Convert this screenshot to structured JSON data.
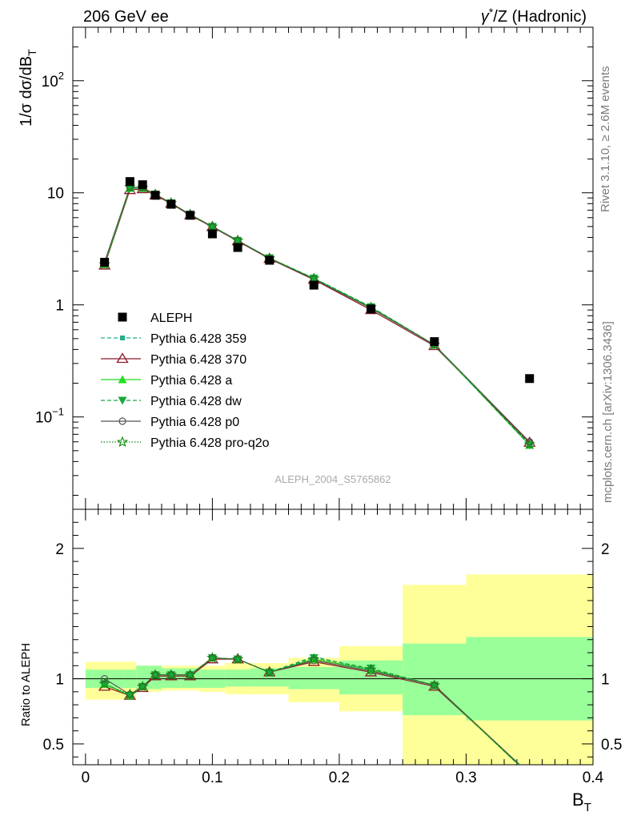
{
  "header": {
    "left": "206 GeV ee",
    "right_gamma": "γ",
    "right_star": "*",
    "right_rest": "/Z (Hadronic)"
  },
  "side": {
    "rivet": "Rivet 3.1.10, ≥ 2.6M events",
    "mcplots": "mcplots.cern.ch [arXiv:1306.3436]"
  },
  "analysis_id": "ALEPH_2004_S5765862",
  "colors": {
    "data": "#000000",
    "p359": "#1fb08a",
    "p370": "#8b1a2a",
    "a": "#22dd22",
    "dw": "#19a83c",
    "p0": "#555555",
    "pro": "#118811",
    "band_inner": "#99ff99",
    "band_outer": "#ffff99"
  },
  "chart_data": [
    {
      "type": "scatter",
      "panel": "main",
      "ylabel_main": "1/σ  dσ/dB",
      "ylabel_sub": "T",
      "yscale": "log",
      "xlim": [
        -0.01,
        0.4
      ],
      "ylim": [
        0.015,
        300
      ],
      "y_ticks": [
        {
          "v": 0.1,
          "base": "10",
          "exp": "−1"
        },
        {
          "v": 1,
          "base": "1",
          "exp": ""
        },
        {
          "v": 10,
          "base": "10",
          "exp": ""
        },
        {
          "v": 100,
          "base": "10",
          "exp": "2"
        }
      ],
      "x": [
        0.015,
        0.035,
        0.045,
        0.055,
        0.0675,
        0.0825,
        0.1,
        0.12,
        0.145,
        0.18,
        0.225,
        0.275,
        0.35
      ],
      "data": {
        "name": "ALEPH",
        "values": [
          2.4,
          12.6,
          11.8,
          9.5,
          7.9,
          6.3,
          4.3,
          3.25,
          2.5,
          1.5,
          0.92,
          0.47,
          0.22
        ]
      },
      "series": [
        {
          "name": "Pythia 6.428 359",
          "key": "p359",
          "marker": "smallsquare",
          "dash": "5,3",
          "values": [
            2.3,
            11.0,
            11.0,
            9.6,
            8.1,
            6.4,
            5.0,
            3.75,
            2.6,
            1.73,
            0.96,
            0.44,
            0.057
          ]
        },
        {
          "name": "Pythia 6.428 370",
          "key": "p370",
          "marker": "triangle_open",
          "dash": "",
          "values": [
            2.25,
            10.6,
            10.8,
            9.5,
            8.0,
            6.3,
            4.95,
            3.7,
            2.58,
            1.68,
            0.9,
            0.43,
            0.059
          ]
        },
        {
          "name": "Pythia 6.428 a",
          "key": "a",
          "marker": "triangle_filled",
          "dash": "",
          "values": [
            2.3,
            11.0,
            11.0,
            9.7,
            8.1,
            6.4,
            5.0,
            3.75,
            2.62,
            1.72,
            0.95,
            0.44,
            0.056
          ]
        },
        {
          "name": "Pythia 6.428 dw",
          "key": "dw",
          "marker": "triangle_down",
          "dash": "5,3",
          "values": [
            2.3,
            11.0,
            11.0,
            9.7,
            8.1,
            6.4,
            5.0,
            3.75,
            2.62,
            1.73,
            0.96,
            0.44,
            0.056
          ]
        },
        {
          "name": "Pythia 6.428 p0",
          "key": "p0",
          "marker": "circle_open",
          "dash": "",
          "values": [
            2.4,
            11.2,
            11.1,
            9.7,
            8.1,
            6.4,
            5.0,
            3.75,
            2.6,
            1.7,
            0.93,
            0.44,
            0.06
          ]
        },
        {
          "name": "Pythia 6.428 pro-q2o",
          "key": "pro",
          "marker": "star_open",
          "dash": "1.5,2",
          "values": [
            2.3,
            11.2,
            11.1,
            9.7,
            8.1,
            6.4,
            5.0,
            3.75,
            2.6,
            1.72,
            0.95,
            0.44,
            0.057
          ]
        }
      ]
    },
    {
      "type": "line",
      "panel": "ratio",
      "ylabel": "Ratio to ALEPH",
      "xlabel_main": "B",
      "xlabel_sub": "T",
      "xlim": [
        -0.01,
        0.4
      ],
      "ylim": [
        0.34,
        2.3
      ],
      "x_ticks": [
        0,
        0.1,
        0.2,
        0.3,
        0.4
      ],
      "x_tick_labels": [
        "0",
        "0.1",
        "0.2",
        "0.3",
        "0.4"
      ],
      "y_ticks": [
        0.5,
        1,
        2
      ],
      "y_tick_labels": [
        "0.5",
        "1",
        "2"
      ],
      "bins": [
        {
          "lo": 0.0,
          "hi": 0.03,
          "inner": [
            0.93,
            1.07
          ],
          "outer": [
            0.84,
            1.13
          ]
        },
        {
          "lo": 0.03,
          "hi": 0.04,
          "inner": [
            0.93,
            1.07
          ],
          "outer": [
            0.84,
            1.13
          ]
        },
        {
          "lo": 0.04,
          "hi": 0.05,
          "inner": [
            0.92,
            1.1
          ],
          "outer": [
            0.9,
            1.1
          ]
        },
        {
          "lo": 0.05,
          "hi": 0.06,
          "inner": [
            0.92,
            1.1
          ],
          "outer": [
            0.9,
            1.1
          ]
        },
        {
          "lo": 0.06,
          "hi": 0.075,
          "inner": [
            0.93,
            1.08
          ],
          "outer": [
            0.91,
            1.1
          ]
        },
        {
          "lo": 0.075,
          "hi": 0.09,
          "inner": [
            0.93,
            1.08
          ],
          "outer": [
            0.91,
            1.1
          ]
        },
        {
          "lo": 0.09,
          "hi": 0.11,
          "inner": [
            0.93,
            1.07
          ],
          "outer": [
            0.9,
            1.1
          ]
        },
        {
          "lo": 0.11,
          "hi": 0.13,
          "inner": [
            0.94,
            1.07
          ],
          "outer": [
            0.88,
            1.12
          ]
        },
        {
          "lo": 0.13,
          "hi": 0.16,
          "inner": [
            0.94,
            1.08
          ],
          "outer": [
            0.88,
            1.12
          ]
        },
        {
          "lo": 0.16,
          "hi": 0.2,
          "inner": [
            0.92,
            1.09
          ],
          "outer": [
            0.82,
            1.16
          ]
        },
        {
          "lo": 0.2,
          "hi": 0.25,
          "inner": [
            0.88,
            1.14
          ],
          "outer": [
            0.75,
            1.25
          ]
        },
        {
          "lo": 0.25,
          "hi": 0.3,
          "inner": [
            0.72,
            1.27
          ],
          "outer": [
            0.3,
            1.72
          ]
        },
        {
          "lo": 0.3,
          "hi": 0.4,
          "inner": [
            0.68,
            1.32
          ],
          "outer": [
            0.3,
            1.8
          ]
        }
      ],
      "x": [
        0.015,
        0.035,
        0.045,
        0.055,
        0.0675,
        0.0825,
        0.1,
        0.12,
        0.145,
        0.18,
        0.225,
        0.275,
        0.35
      ],
      "series": [
        {
          "key": "p359",
          "values": [
            0.96,
            0.87,
            0.93,
            1.03,
            1.03,
            1.03,
            1.16,
            1.15,
            1.05,
            1.17,
            1.07,
            0.95,
            0.26
          ]
        },
        {
          "key": "p370",
          "values": [
            0.94,
            0.87,
            0.93,
            1.02,
            1.02,
            1.02,
            1.15,
            1.15,
            1.05,
            1.13,
            1.05,
            0.94,
            0.27
          ]
        },
        {
          "key": "a",
          "values": [
            0.96,
            0.87,
            0.94,
            1.03,
            1.03,
            1.03,
            1.16,
            1.15,
            1.05,
            1.15,
            1.07,
            0.95,
            0.26
          ]
        },
        {
          "key": "dw",
          "values": [
            0.96,
            0.87,
            0.94,
            1.03,
            1.03,
            1.03,
            1.16,
            1.15,
            1.05,
            1.16,
            1.08,
            0.95,
            0.26
          ]
        },
        {
          "key": "p0",
          "values": [
            1.0,
            0.88,
            0.94,
            1.03,
            1.03,
            1.03,
            1.16,
            1.15,
            1.05,
            1.14,
            1.06,
            0.95,
            0.27
          ]
        },
        {
          "key": "pro",
          "values": [
            0.96,
            0.88,
            0.94,
            1.03,
            1.03,
            1.03,
            1.16,
            1.15,
            1.05,
            1.15,
            1.07,
            0.95,
            0.26
          ]
        }
      ]
    }
  ]
}
